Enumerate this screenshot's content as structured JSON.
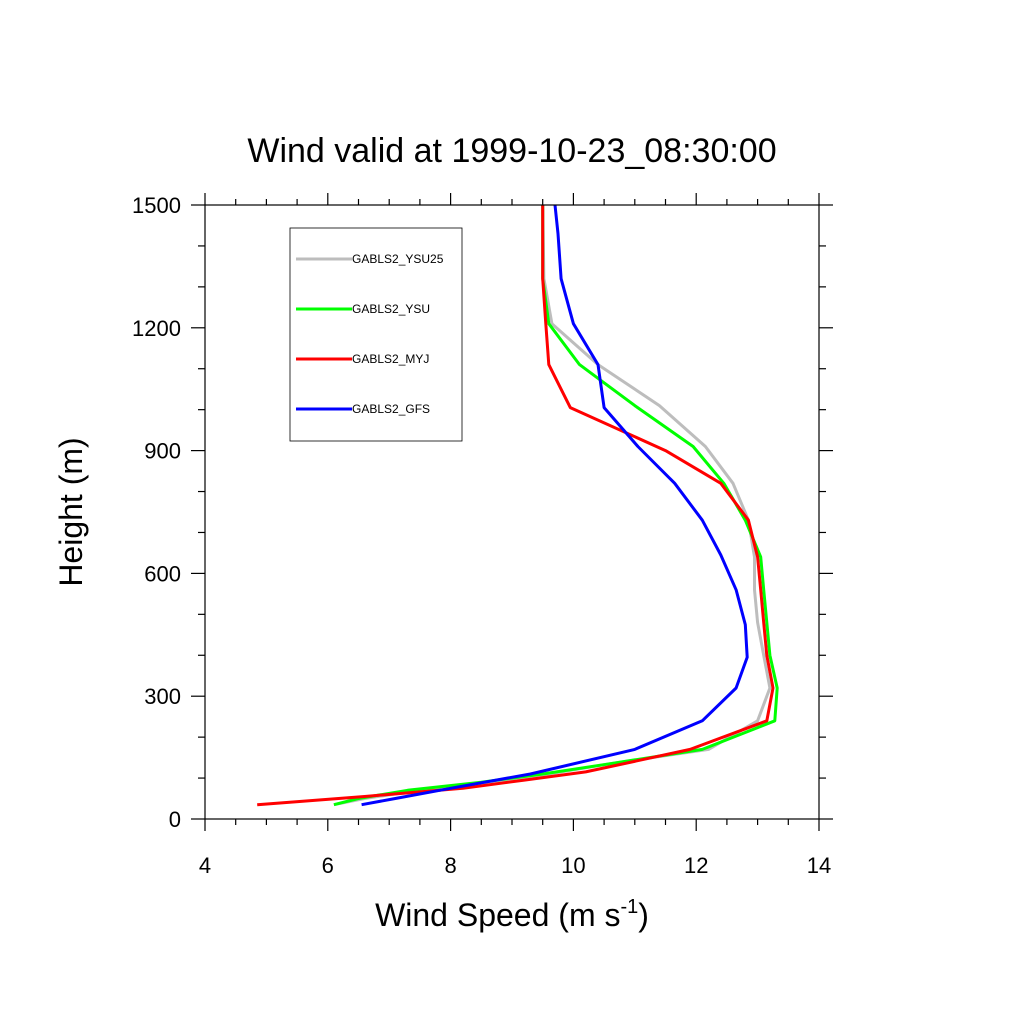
{
  "chart_data": {
    "type": "line",
    "title": "Wind valid at 1999-10-23_08:30:00",
    "xlabel": "Wind Speed (m s",
    "xlabel_sup": "-1",
    "xlabel_end": ")",
    "ylabel": "Height (m)",
    "xlim": [
      4,
      14
    ],
    "ylim": [
      0,
      1500
    ],
    "xticks": [
      4,
      6,
      8,
      10,
      12,
      14
    ],
    "yticks": [
      0,
      300,
      600,
      900,
      1200,
      1500
    ],
    "xtick_labels": [
      "4",
      "6",
      "8",
      "10",
      "12",
      "14"
    ],
    "ytick_labels": [
      "0",
      "300",
      "600",
      "900",
      "1200",
      "1500"
    ],
    "grid": false,
    "legend_position": "top-left",
    "series": [
      {
        "name": "GABLS2_YSU25",
        "color": "#bdbdbd",
        "points": [
          [
            6.1,
            35
          ],
          [
            6.6,
            50
          ],
          [
            7.5,
            70
          ],
          [
            8.6,
            90
          ],
          [
            9.6,
            110
          ],
          [
            10.6,
            135
          ],
          [
            12.2,
            170
          ],
          [
            13.0,
            240
          ],
          [
            13.2,
            320
          ],
          [
            13.1,
            400
          ],
          [
            13.0,
            480
          ],
          [
            12.95,
            560
          ],
          [
            12.95,
            640
          ],
          [
            12.85,
            730
          ],
          [
            12.6,
            820
          ],
          [
            12.15,
            910
          ],
          [
            11.4,
            1010
          ],
          [
            10.4,
            1110
          ],
          [
            9.65,
            1210
          ],
          [
            9.52,
            1320
          ],
          [
            9.5,
            1500
          ]
        ]
      },
      {
        "name": "GABLS2_YSU",
        "color": "#00ff00",
        "points": [
          [
            6.1,
            35
          ],
          [
            6.5,
            50
          ],
          [
            7.3,
            70
          ],
          [
            8.5,
            90
          ],
          [
            9.5,
            110
          ],
          [
            10.6,
            135
          ],
          [
            12.1,
            170
          ],
          [
            13.28,
            240
          ],
          [
            13.32,
            320
          ],
          [
            13.2,
            400
          ],
          [
            13.15,
            480
          ],
          [
            13.1,
            560
          ],
          [
            13.05,
            640
          ],
          [
            12.8,
            730
          ],
          [
            12.45,
            820
          ],
          [
            11.95,
            910
          ],
          [
            11.0,
            1010
          ],
          [
            10.1,
            1110
          ],
          [
            9.6,
            1210
          ],
          [
            9.5,
            1320
          ],
          [
            9.5,
            1500
          ]
        ]
      },
      {
        "name": "GABLS2_MYJ",
        "color": "#ff0000",
        "points": [
          [
            4.85,
            35
          ],
          [
            6.6,
            55
          ],
          [
            8.2,
            75
          ],
          [
            9.2,
            95
          ],
          [
            10.2,
            115
          ],
          [
            11.9,
            170
          ],
          [
            13.15,
            240
          ],
          [
            13.25,
            320
          ],
          [
            13.15,
            400
          ],
          [
            13.1,
            480
          ],
          [
            13.05,
            560
          ],
          [
            13.0,
            640
          ],
          [
            12.85,
            730
          ],
          [
            12.4,
            820
          ],
          [
            11.5,
            900
          ],
          [
            9.95,
            1005
          ],
          [
            9.6,
            1110
          ],
          [
            9.55,
            1210
          ],
          [
            9.5,
            1320
          ],
          [
            9.5,
            1500
          ]
        ]
      },
      {
        "name": "GABLS2_GFS",
        "color": "#0000ff",
        "points": [
          [
            6.55,
            35
          ],
          [
            7.1,
            50
          ],
          [
            8.0,
            75
          ],
          [
            9.3,
            110
          ],
          [
            11.0,
            170
          ],
          [
            12.1,
            240
          ],
          [
            12.65,
            320
          ],
          [
            12.83,
            395
          ],
          [
            12.8,
            475
          ],
          [
            12.65,
            560
          ],
          [
            12.4,
            645
          ],
          [
            12.1,
            730
          ],
          [
            11.65,
            820
          ],
          [
            11.05,
            910
          ],
          [
            10.5,
            1005
          ],
          [
            10.4,
            1110
          ],
          [
            10.0,
            1210
          ],
          [
            9.8,
            1320
          ],
          [
            9.75,
            1430
          ],
          [
            9.7,
            1500
          ]
        ]
      }
    ]
  }
}
